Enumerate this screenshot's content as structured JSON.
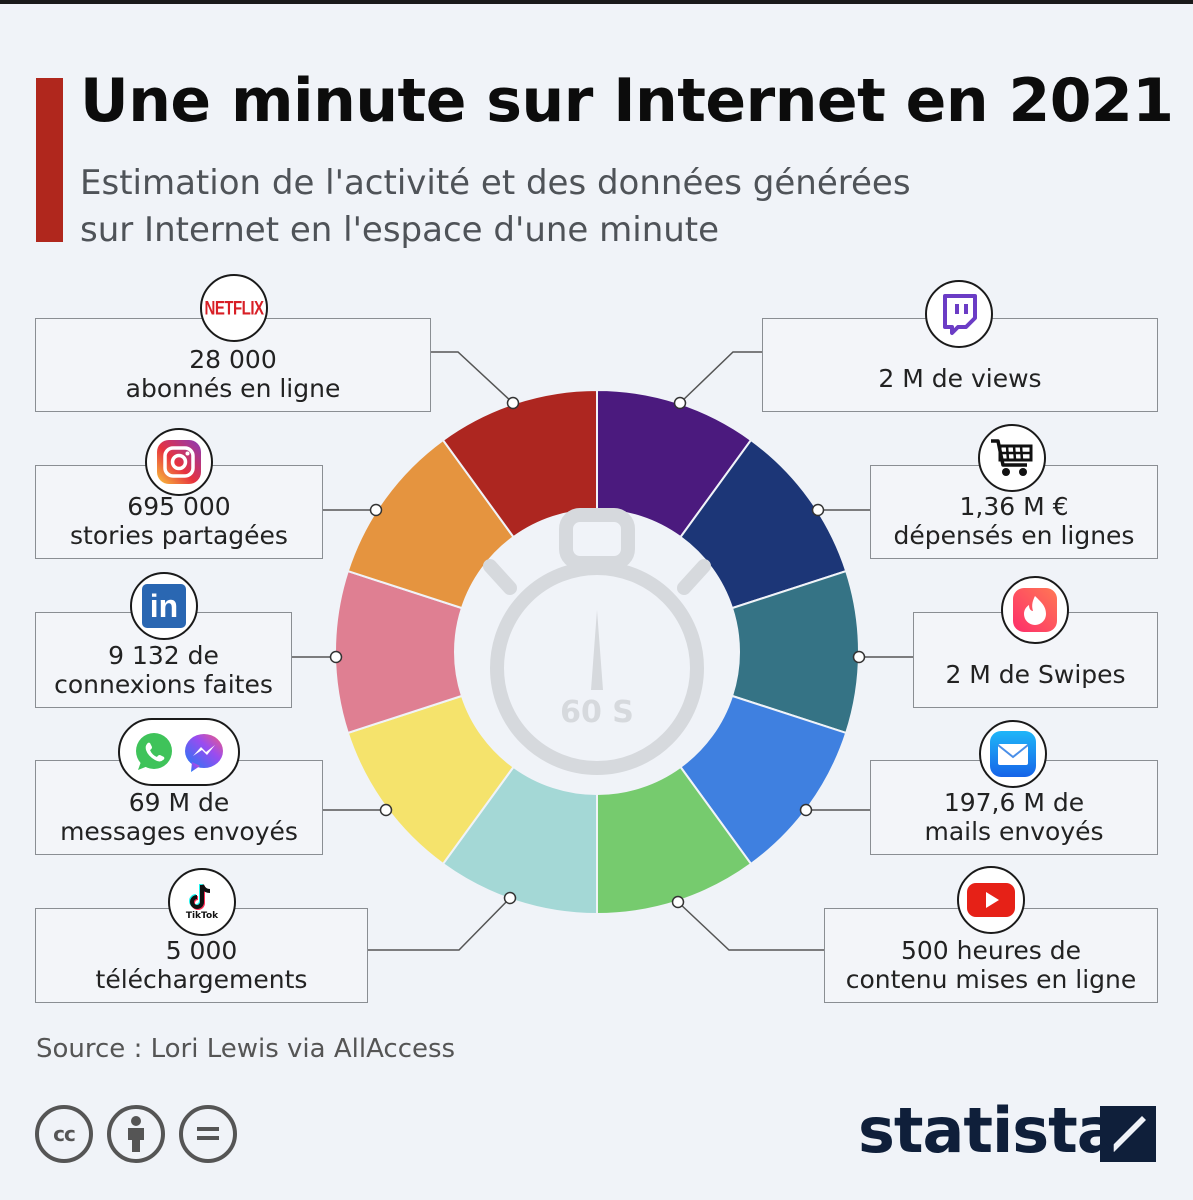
{
  "title": "Une minute sur Internet en 2021",
  "subtitle_lines": [
    "Estimation de l'activité et des données générées",
    "sur Internet en l'espace d'une minute"
  ],
  "center_label": "60 S",
  "left_items": [
    {
      "lines": [
        "28 000",
        "abonnés en ligne"
      ],
      "icon": "netflix-icon",
      "icon_text": "NETFLIX"
    },
    {
      "lines": [
        "695 000",
        "stories partagées"
      ],
      "icon": "instagram-icon"
    },
    {
      "lines": [
        "9 132 de",
        "connexions faites"
      ],
      "icon": "linkedin-icon",
      "icon_text": "in"
    },
    {
      "lines": [
        "69 M de",
        "messages envoyés"
      ],
      "icon": "whatsapp-messenger-icons"
    },
    {
      "lines": [
        "5 000",
        "téléchargements"
      ],
      "icon": "tiktok-icon",
      "icon_text": "TikTok"
    }
  ],
  "right_items": [
    {
      "lines": [
        "2 M de views"
      ],
      "icon": "twitch-icon"
    },
    {
      "lines": [
        "1,36 M €",
        "dépensés en lignes"
      ],
      "icon": "shopping-cart-icon"
    },
    {
      "lines": [
        "2 M de Swipes"
      ],
      "icon": "tinder-icon"
    },
    {
      "lines": [
        "197,6 M de",
        "mails envoyés"
      ],
      "icon": "mail-icon"
    },
    {
      "lines": [
        "500 heures de",
        "contenu mises en ligne"
      ],
      "icon": "youtube-icon"
    }
  ],
  "segment_colors": [
    "#4b1a7e",
    "#1c3677",
    "#357385",
    "#3f80e0",
    "#76cb6e",
    "#a4d8d6",
    "#f5e36c",
    "#df7f92",
    "#e5943f",
    "#ad2620"
  ],
  "accent_color": "#b0271d",
  "source": "Source : Lori Lewis via AllAccess",
  "license_icons": [
    "cc-icon",
    "attribution-icon",
    "no-derivatives-icon"
  ],
  "brand": "statista"
}
